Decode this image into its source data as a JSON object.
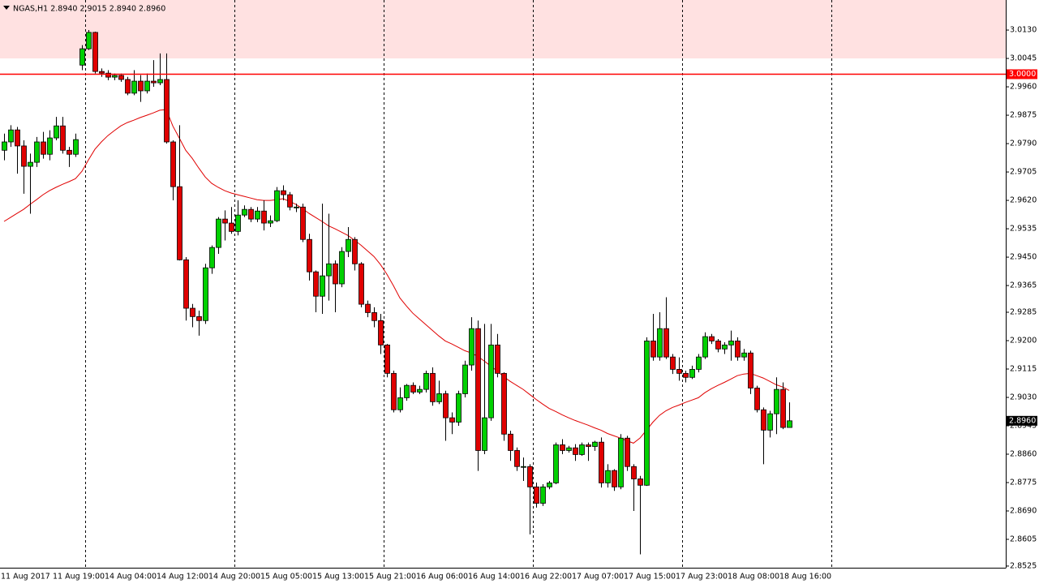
{
  "chart_data": {
    "type": "candlestick",
    "header": "NGAS,H1  2.8940 2.9015 2.8940 2.8960",
    "categories": [
      "11 Aug 2017",
      null,
      null,
      null,
      null,
      null,
      null,
      null,
      "11 Aug 19:00",
      null,
      null,
      null,
      null,
      null,
      null,
      null,
      "14 Aug 04:00",
      null,
      null,
      null,
      null,
      null,
      null,
      null,
      "14 Aug 12:00",
      null,
      null,
      null,
      null,
      null,
      null,
      null,
      "14 Aug 20:00",
      null,
      null,
      null,
      null,
      null,
      null,
      null,
      "15 Aug 05:00",
      null,
      null,
      null,
      null,
      null,
      null,
      null,
      "15 Aug 13:00",
      null,
      null,
      null,
      null,
      null,
      null,
      null,
      "15 Aug 21:00",
      null,
      null,
      null,
      null,
      null,
      null,
      null,
      "16 Aug 06:00",
      null,
      null,
      null,
      null,
      null,
      null,
      null,
      "16 Aug 14:00",
      null,
      null,
      null,
      null,
      null,
      null,
      null,
      "16 Aug 22:00",
      null,
      null,
      null,
      null,
      null,
      null,
      null,
      "17 Aug 07:00",
      null,
      null,
      null,
      null,
      null,
      null,
      null,
      "17 Aug 15:00",
      null,
      null,
      null,
      null,
      null,
      null,
      null,
      "17 Aug 23:00",
      null,
      null,
      null,
      null,
      null,
      null,
      null,
      "18 Aug 08:00",
      null,
      null,
      null,
      null,
      null,
      null,
      null,
      "18 Aug 16:00",
      null
    ],
    "open": [
      2.977,
      2.9795,
      2.9831,
      2.9783,
      2.9722,
      2.9734,
      2.9795,
      2.9758,
      2.9807,
      2.9843,
      2.977,
      2.9758,
      3.0025,
      3.0074,
      3.0123,
      3.0006,
      3.0001,
      2.9989,
      2.9994,
      2.9982,
      2.9941,
      2.9977,
      2.9948,
      2.9977,
      2.9972,
      2.9982,
      2.9795,
      2.9661,
      2.9442,
      2.9297,
      2.9272,
      2.926,
      2.9418,
      2.9479,
      2.9564,
      2.9552,
      2.9527,
      2.9576,
      2.9593,
      2.9564,
      2.9588,
      2.9552,
      2.9559,
      2.9649,
      2.9637,
      2.96,
      2.96,
      2.9503,
      2.9406,
      2.9333,
      2.9394,
      2.943,
      2.937,
      2.9467,
      2.9503,
      2.943,
      2.9309,
      2.9284,
      2.926,
      2.9187,
      2.9102,
      2.8993,
      2.9029,
      2.9066,
      2.9046,
      2.9054,
      2.9102,
      2.9017,
      2.9041,
      2.8969,
      2.8956,
      2.9041,
      2.9127,
      2.9236,
      2.8871,
      2.8969,
      2.9187,
      2.9102,
      2.892,
      2.8871,
      2.8823,
      2.8823,
      2.8762,
      2.8713,
      2.8762,
      2.8774,
      2.8888,
      2.8871,
      2.8879,
      2.8859,
      2.8888,
      2.8883,
      2.8896,
      2.8774,
      2.8811,
      2.8762,
      2.8908,
      2.8823,
      2.8786,
      2.8767,
      2.9199,
      2.9151,
      2.9236,
      2.9151,
      2.9114,
      2.9102,
      2.909,
      2.9114,
      2.9151,
      2.9212,
      2.9199,
      2.9175,
      2.9187,
      2.9199,
      2.9151,
      2.9163,
      2.9058,
      2.8993,
      2.8932,
      2.8981,
      2.9054,
      2.894
    ],
    "high": [
      2.982,
      2.9845,
      2.984,
      2.98,
      2.976,
      2.981,
      2.9825,
      2.983,
      2.987,
      2.987,
      2.978,
      2.982,
      3.0085,
      3.013,
      3.0125,
      3.0015,
      3.001,
      3.0,
      3.0,
      2.999,
      3.001,
      2.9995,
      3.0,
      3.004,
      3.006,
      3.006,
      2.98,
      2.9845,
      2.945,
      2.931,
      2.929,
      2.943,
      2.9485,
      2.957,
      2.959,
      2.96,
      2.962,
      2.9605,
      2.96,
      2.96,
      2.962,
      2.9575,
      2.966,
      2.9665,
      2.9645,
      2.961,
      2.961,
      2.952,
      2.941,
      2.961,
      2.958,
      2.944,
      2.948,
      2.954,
      2.951,
      2.9435,
      2.932,
      2.93,
      2.928,
      2.919,
      2.911,
      2.906,
      2.907,
      2.9075,
      2.9065,
      2.911,
      2.912,
      2.908,
      2.905,
      2.8985,
      2.905,
      2.914,
      2.927,
      2.926,
      2.925,
      2.925,
      2.922,
      2.9105,
      2.893,
      2.888,
      2.885,
      2.883,
      2.8775,
      2.877,
      2.878,
      2.8895,
      2.8905,
      2.8885,
      2.889,
      2.8895,
      2.8895,
      2.89,
      2.891,
      2.883,
      2.8815,
      2.892,
      2.8915,
      2.883,
      2.8795,
      2.921,
      2.928,
      2.9285,
      2.933,
      2.916,
      2.915,
      2.911,
      2.9125,
      2.916,
      2.9225,
      2.922,
      2.9205,
      2.9195,
      2.923,
      2.921,
      2.9175,
      2.917,
      2.9065,
      2.9,
      2.899,
      2.909,
      2.9075,
      2.9015
    ],
    "low": [
      2.974,
      2.978,
      2.97,
      2.964,
      2.958,
      2.972,
      2.9745,
      2.974,
      2.98,
      2.976,
      2.972,
      2.975,
      3.001,
      3.007,
      3.0,
      2.999,
      2.998,
      2.998,
      2.9975,
      2.9935,
      2.9935,
      2.9915,
      2.994,
      2.996,
      2.9965,
      2.979,
      2.962,
      2.944,
      2.926,
      2.924,
      2.9215,
      2.925,
      2.94,
      2.946,
      2.95,
      2.952,
      2.9515,
      2.957,
      2.9555,
      2.9555,
      2.953,
      2.954,
      2.9555,
      2.962,
      2.959,
      2.9585,
      2.9495,
      2.938,
      2.9285,
      2.928,
      2.932,
      2.9285,
      2.936,
      2.945,
      2.941,
      2.93,
      2.927,
      2.924,
      2.916,
      2.909,
      2.8985,
      2.8985,
      2.902,
      2.904,
      2.904,
      2.9045,
      2.9005,
      2.901,
      2.89,
      2.892,
      2.8945,
      2.903,
      2.911,
      2.881,
      2.886,
      2.896,
      2.909,
      2.89,
      2.884,
      2.881,
      2.878,
      2.862,
      2.87,
      2.8705,
      2.8755,
      2.877,
      2.886,
      2.8865,
      2.884,
      2.8855,
      2.884,
      2.887,
      2.876,
      2.876,
      2.875,
      2.8755,
      2.881,
      2.869,
      2.856,
      2.8765,
      2.914,
      2.914,
      2.9145,
      2.91,
      2.908,
      2.9075,
      2.9085,
      2.9105,
      2.9145,
      2.919,
      2.9165,
      2.916,
      2.914,
      2.914,
      2.914,
      2.904,
      2.8985,
      2.883,
      2.891,
      2.892,
      2.8935,
      2.894
    ],
    "close": [
      2.9795,
      2.9831,
      2.9783,
      2.9722,
      2.9734,
      2.9795,
      2.9758,
      2.9807,
      2.9843,
      2.977,
      2.9758,
      2.9802,
      3.0074,
      3.0123,
      3.0006,
      3.0001,
      2.9989,
      2.9994,
      2.9982,
      2.9941,
      2.9977,
      2.9948,
      2.9977,
      2.9972,
      2.9982,
      2.9795,
      2.9661,
      2.9442,
      2.9297,
      2.9272,
      2.926,
      2.9418,
      2.9479,
      2.9564,
      2.9552,
      2.9527,
      2.9576,
      2.9593,
      2.9564,
      2.9588,
      2.9552,
      2.9559,
      2.9649,
      2.9637,
      2.96,
      2.96,
      2.9503,
      2.9406,
      2.9333,
      2.9394,
      2.943,
      2.937,
      2.9467,
      2.9503,
      2.943,
      2.9309,
      2.9284,
      2.926,
      2.9187,
      2.9102,
      2.8993,
      2.9029,
      2.9066,
      2.9046,
      2.9054,
      2.9102,
      2.9017,
      2.9041,
      2.8969,
      2.8956,
      2.9041,
      2.9127,
      2.9236,
      2.8871,
      2.8969,
      2.9187,
      2.9102,
      2.892,
      2.8871,
      2.8823,
      2.8823,
      2.8762,
      2.8713,
      2.8762,
      2.8774,
      2.8888,
      2.8871,
      2.8879,
      2.8859,
      2.8888,
      2.8883,
      2.8896,
      2.8774,
      2.8811,
      2.8762,
      2.8908,
      2.8823,
      2.8786,
      2.8767,
      2.9199,
      2.9151,
      2.9236,
      2.9151,
      2.9114,
      2.9102,
      2.909,
      2.9114,
      2.9151,
      2.9212,
      2.9199,
      2.9175,
      2.9187,
      2.9199,
      2.9151,
      2.9163,
      2.9058,
      2.8993,
      2.8932,
      2.8981,
      2.9054,
      2.894,
      2.896
    ],
    "ma": {
      "color": "#e00000",
      "values": [
        2.9557,
        2.9569,
        2.9581,
        2.9593,
        2.9608,
        2.9622,
        2.9637,
        2.9649,
        2.9659,
        2.9668,
        2.9676,
        2.9685,
        2.9707,
        2.9741,
        2.9773,
        2.9795,
        2.9814,
        2.9829,
        2.9843,
        2.9853,
        2.986,
        2.9868,
        2.9875,
        2.9882,
        2.989,
        2.9892,
        2.9843,
        2.9807,
        2.977,
        2.9746,
        2.9717,
        2.969,
        2.9671,
        2.9659,
        2.9649,
        2.9642,
        2.9637,
        2.9632,
        2.9627,
        2.9622,
        2.962,
        2.962,
        2.9622,
        2.9625,
        2.9617,
        2.9608,
        2.9595,
        2.9581,
        2.9569,
        2.9557,
        2.9544,
        2.9535,
        2.9525,
        2.9515,
        2.9501,
        2.9486,
        2.9469,
        2.9452,
        2.9428,
        2.9399,
        2.9365,
        2.9328,
        2.9304,
        2.9282,
        2.9265,
        2.9248,
        2.9231,
        2.9214,
        2.9199,
        2.919,
        2.918,
        2.917,
        2.9163,
        2.9153,
        2.9139,
        2.9124,
        2.9109,
        2.9092,
        2.9078,
        2.9066,
        2.9054,
        2.9039,
        2.9024,
        2.901,
        2.8997,
        2.8988,
        2.8978,
        2.8969,
        2.8961,
        2.8954,
        2.8947,
        2.8939,
        2.8932,
        2.8922,
        2.8915,
        2.8908,
        2.89,
        2.8893,
        2.8908,
        2.8932,
        2.8956,
        2.8976,
        2.899,
        2.9,
        2.9007,
        2.9015,
        2.9022,
        2.9029,
        2.9044,
        2.9056,
        2.9066,
        2.9075,
        2.9085,
        2.9095,
        2.91,
        2.9102,
        2.9095,
        2.9088,
        2.9078,
        2.9068,
        2.9061,
        2.9051
      ]
    },
    "up_color": "#00d000",
    "down_color": "#e00000",
    "ylim": [
      2.852,
      3.022
    ],
    "yticks": [
      {
        "value": 3.013,
        "label": "3.0130"
      },
      {
        "value": 3.0045,
        "label": "3.0045"
      },
      {
        "value": 2.996,
        "label": "2.9960"
      },
      {
        "value": 2.9875,
        "label": "2.9875"
      },
      {
        "value": 2.979,
        "label": "2.9790"
      },
      {
        "value": 2.9705,
        "label": "2.9705"
      },
      {
        "value": 2.962,
        "label": "2.9620"
      },
      {
        "value": 2.9535,
        "label": "2.9535"
      },
      {
        "value": 2.945,
        "label": "2.9450"
      },
      {
        "value": 2.9365,
        "label": "2.9365"
      },
      {
        "value": 2.9285,
        "label": "2.9285"
      },
      {
        "value": 2.92,
        "label": "2.9200"
      },
      {
        "value": 2.9115,
        "label": "2.9115"
      },
      {
        "value": 2.903,
        "label": "2.9030"
      },
      {
        "value": 2.8945,
        "label": "2.8945"
      },
      {
        "value": 2.886,
        "label": "2.8860"
      },
      {
        "value": 2.8775,
        "label": "2.8775"
      },
      {
        "value": 2.869,
        "label": "2.8690"
      },
      {
        "value": 2.8605,
        "label": "2.8605"
      },
      {
        "value": 2.8525,
        "label": "2.8525"
      }
    ],
    "zone": {
      "range": [
        3.0045,
        3.022
      ],
      "color": "#ffe1e1"
    },
    "level": {
      "value": 3.0,
      "label": "3.0000",
      "color": "#ff0000"
    },
    "last_price": {
      "value": 2.896,
      "label": "2.8960"
    }
  }
}
